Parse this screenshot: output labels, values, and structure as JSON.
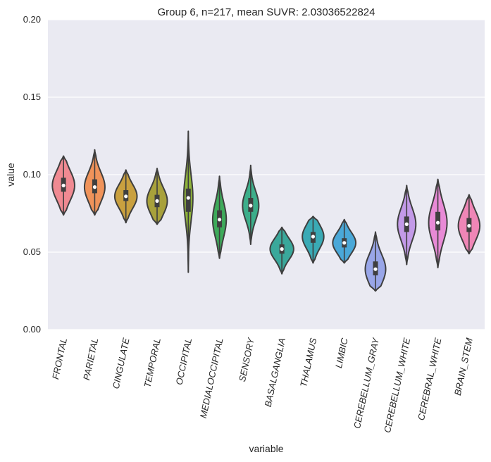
{
  "chart_data": {
    "type": "violin",
    "title": "Group 6, n=217, mean SUVR: 2.03036522824",
    "xlabel": "variable",
    "ylabel": "value",
    "ylim": [
      0.0,
      0.2
    ],
    "yticks": [
      "0.00",
      "0.05",
      "0.10",
      "0.15",
      "0.20"
    ],
    "grid": true,
    "legend": "none",
    "categories": [
      "FRONTAL",
      "PARIETAL",
      "CINGULATE",
      "TEMPORAL",
      "OCCIPITAL",
      "MEDIALOCCIPITAL",
      "SENSORY",
      "BASALGANGLIA",
      "THALAMUS",
      "LIMBIC",
      "CEREBELLUM_GRAY",
      "CEREBELLUM_WHITE",
      "CEREBRAL_WHITE",
      "BRAIN_STEM"
    ],
    "colors": [
      "#f08a92",
      "#f0935a",
      "#c9a03f",
      "#a8a13b",
      "#8fb43a",
      "#3daa5a",
      "#3cae8a",
      "#3aa89b",
      "#3aaab5",
      "#4aa8d8",
      "#99a6e8",
      "#c39ae8",
      "#e88ad6",
      "#ef86b6"
    ],
    "violins": [
      {
        "min": 0.074,
        "q1": 0.089,
        "median": 0.093,
        "q3": 0.098,
        "max": 0.112,
        "maxWidth": 0.85
      },
      {
        "min": 0.074,
        "q1": 0.088,
        "median": 0.092,
        "q3": 0.097,
        "max": 0.116,
        "maxWidth": 0.78
      },
      {
        "min": 0.069,
        "q1": 0.083,
        "median": 0.086,
        "q3": 0.09,
        "max": 0.103,
        "maxWidth": 0.85
      },
      {
        "min": 0.068,
        "q1": 0.079,
        "median": 0.083,
        "q3": 0.087,
        "max": 0.104,
        "maxWidth": 0.78
      },
      {
        "min": 0.037,
        "q1": 0.076,
        "median": 0.085,
        "q3": 0.091,
        "max": 0.128,
        "maxWidth": 0.35
      },
      {
        "min": 0.046,
        "q1": 0.066,
        "median": 0.071,
        "q3": 0.077,
        "max": 0.099,
        "maxWidth": 0.52
      },
      {
        "min": 0.055,
        "q1": 0.076,
        "median": 0.08,
        "q3": 0.085,
        "max": 0.106,
        "maxWidth": 0.62
      },
      {
        "min": 0.036,
        "q1": 0.049,
        "median": 0.052,
        "q3": 0.055,
        "max": 0.066,
        "maxWidth": 0.9
      },
      {
        "min": 0.043,
        "q1": 0.056,
        "median": 0.06,
        "q3": 0.063,
        "max": 0.073,
        "maxWidth": 0.82
      },
      {
        "min": 0.043,
        "q1": 0.053,
        "median": 0.056,
        "q3": 0.059,
        "max": 0.071,
        "maxWidth": 0.88
      },
      {
        "min": 0.025,
        "q1": 0.035,
        "median": 0.039,
        "q3": 0.044,
        "max": 0.063,
        "maxWidth": 0.78
      },
      {
        "min": 0.042,
        "q1": 0.063,
        "median": 0.068,
        "q3": 0.073,
        "max": 0.093,
        "maxWidth": 0.7
      },
      {
        "min": 0.04,
        "q1": 0.064,
        "median": 0.069,
        "q3": 0.076,
        "max": 0.097,
        "maxWidth": 0.7
      },
      {
        "min": 0.049,
        "q1": 0.063,
        "median": 0.067,
        "q3": 0.072,
        "max": 0.087,
        "maxWidth": 0.82
      }
    ]
  }
}
